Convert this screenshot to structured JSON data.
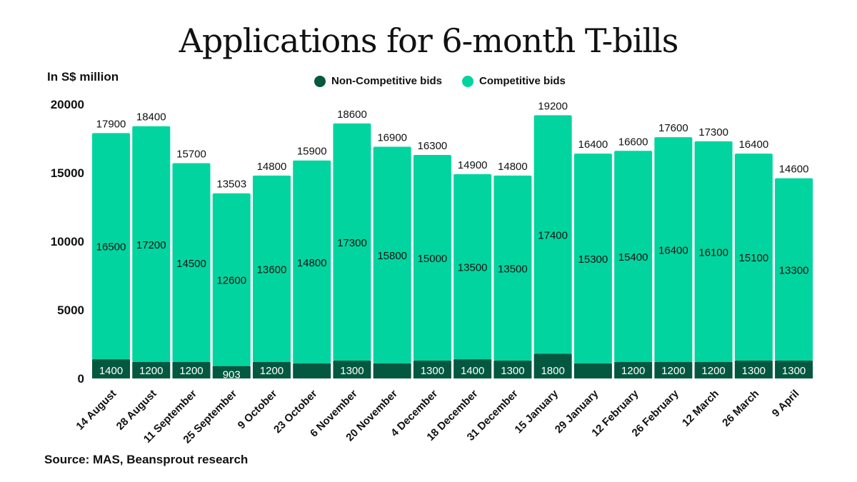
{
  "title": "Applications for 6-month T-bills",
  "unit_label": "In S$ million",
  "source": "Source: MAS, Beansprout research",
  "colors": {
    "non_competitive": "#03583f",
    "competitive": "#02d4a0"
  },
  "chart_data": {
    "type": "bar",
    "stacked": true,
    "title": "Applications for 6-month T-bills",
    "ylabel": "In S$ million",
    "ylim": [
      0,
      20000
    ],
    "yticks": [
      0,
      5000,
      10000,
      15000,
      20000
    ],
    "grid": false,
    "legend": "top-center",
    "categories": [
      "14 August",
      "28 August",
      "11 September",
      "25 September",
      "9 October",
      "23 October",
      "6 November",
      "20 November",
      "4 December",
      "18 December",
      "31 December",
      "15 January",
      "29 January",
      "12 February",
      "26 February",
      "12 March",
      "26 March",
      "9 April"
    ],
    "series": [
      {
        "name": "Non-Competitive bids",
        "values": [
          1400,
          1200,
          1200,
          903,
          1200,
          1100,
          1300,
          1100,
          1300,
          1400,
          1300,
          1800,
          1100,
          1200,
          1200,
          1200,
          1300,
          1300
        ],
        "labels": [
          "1400",
          "1200",
          "1200",
          "903",
          "1200",
          "",
          "1300",
          "",
          "1300",
          "1400",
          "1300",
          "1800",
          "",
          "1200",
          "1200",
          "1200",
          "1300",
          "1300"
        ]
      },
      {
        "name": "Competitive bids",
        "values": [
          16500,
          17200,
          14500,
          12600,
          13600,
          14800,
          17300,
          15800,
          15000,
          13500,
          13500,
          17400,
          15300,
          15400,
          16400,
          16100,
          15100,
          13300
        ],
        "labels": [
          "16500",
          "17200",
          "14500",
          "12600",
          "13600",
          "14800",
          "17300",
          "15800",
          "15000",
          "13500",
          "13500",
          "17400",
          "15300",
          "15400",
          "16400",
          "16100",
          "15100",
          "13300"
        ]
      }
    ],
    "totals": [
      "17900",
      "18400",
      "15700",
      "13503",
      "14800",
      "15900",
      "18600",
      "16900",
      "16300",
      "14900",
      "14800",
      "19200",
      "16400",
      "16600",
      "17600",
      "17300",
      "16400",
      "14600"
    ]
  }
}
